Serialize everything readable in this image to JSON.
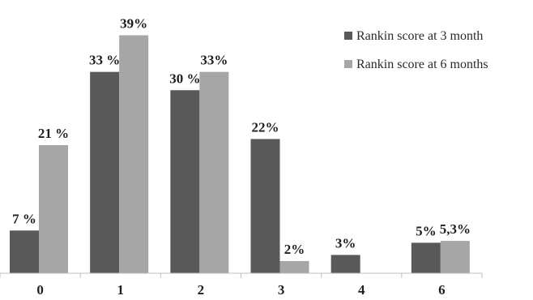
{
  "chart_data": {
    "type": "bar",
    "categories": [
      "0",
      "1",
      "2",
      "3",
      "4",
      "6"
    ],
    "series": [
      {
        "name": "Rankin score at 3 month",
        "values": [
          7,
          33,
          30,
          22,
          3,
          5
        ],
        "labels": [
          "7 %",
          "33 %",
          "30 %",
          "22%",
          "3%",
          "5%"
        ],
        "color": "#595959"
      },
      {
        "name": "Rankin score at 6 months",
        "values": [
          21,
          39,
          33,
          2,
          0,
          5.3
        ],
        "labels": [
          "21 %",
          "39%",
          "33%",
          "2%",
          "",
          "5,3%"
        ],
        "color": "#a6a6a6"
      }
    ],
    "ylim": [
      0,
      40
    ],
    "grid": false,
    "legend_position": "top-right"
  }
}
